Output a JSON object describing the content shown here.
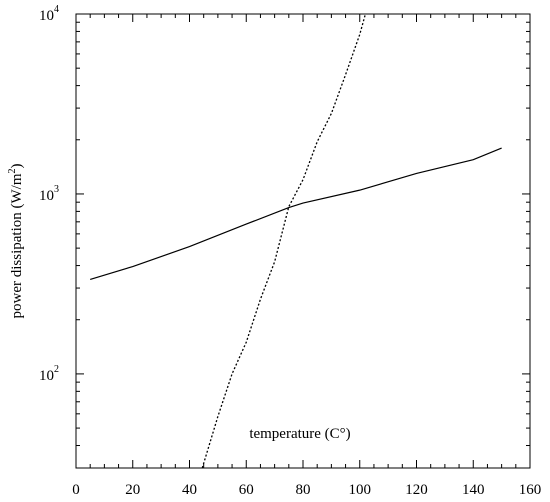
{
  "chart_data": {
    "type": "line",
    "title": "",
    "xlabel": "temperature (C°)",
    "ylabel": {
      "prefix": "power dissipation (W/m",
      "superscript": "2",
      "suffix": ")"
    },
    "x_scale": "linear",
    "y_scale": "log",
    "xlim": [
      0,
      160
    ],
    "ylim": [
      30,
      10000
    ],
    "grid": false,
    "legend": "none",
    "x_ticks": [
      0,
      20,
      40,
      60,
      80,
      100,
      120,
      140,
      160
    ],
    "x_tick_labels": [
      "0",
      "20",
      "40",
      "60",
      "80",
      "100",
      "120",
      "140",
      "160"
    ],
    "y_ticks": [
      {
        "value": 100,
        "base": "10",
        "exp": "2"
      },
      {
        "value": 1000,
        "base": "10",
        "exp": "3"
      },
      {
        "value": 10000,
        "base": "10",
        "exp": "4"
      }
    ],
    "series": [
      {
        "style": "solid",
        "x": [
          5,
          20,
          40,
          60,
          75,
          80,
          100,
          120,
          140,
          150
        ],
        "y": [
          335,
          395,
          510,
          680,
          840,
          890,
          1050,
          1300,
          1550,
          1800
        ]
      },
      {
        "style": "dotted",
        "x": [
          44.5,
          50,
          55,
          60,
          65,
          70,
          75,
          80,
          85,
          90,
          95,
          100,
          102
        ],
        "y": [
          30,
          58,
          100,
          150,
          260,
          420,
          850,
          1200,
          1950,
          2800,
          4600,
          7700,
          10000
        ]
      }
    ]
  }
}
